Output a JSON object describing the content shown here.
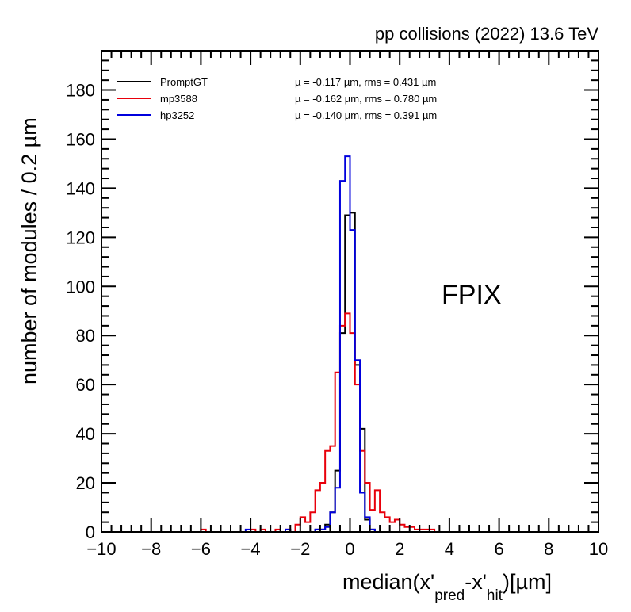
{
  "chart_data": {
    "type": "histogram",
    "header": "pp collisions (2022) 13.6 TeV",
    "annotation": "FPIX",
    "xlabel_parts": {
      "main": "median(x'",
      "sub1": "pred",
      "mid": "-x'",
      "sub2": "hit",
      "end": ")[µm]"
    },
    "ylabel": "number of modules / 0.2  µm",
    "xlim": [
      -10,
      10
    ],
    "ylim": [
      0,
      196
    ],
    "x_ticks": [
      "−10",
      "−8",
      "−6",
      "−4",
      "−2",
      "0",
      "2",
      "4",
      "6",
      "8",
      "10"
    ],
    "y_ticks": [
      "0",
      "20",
      "40",
      "60",
      "80",
      "100",
      "120",
      "140",
      "160",
      "180"
    ],
    "bin_width": 0.2,
    "series": [
      {
        "name": "PromptGT",
        "color": "#000000",
        "stats": "µ = -0.117 µm,  rms = 0.431 µm",
        "bins": [
          [
            -1.4,
            1
          ],
          [
            -1.2,
            1
          ],
          [
            -1.0,
            3
          ],
          [
            -0.8,
            8
          ],
          [
            -0.6,
            25
          ],
          [
            -0.4,
            81
          ],
          [
            -0.2,
            129
          ],
          [
            0.0,
            130
          ],
          [
            0.2,
            68
          ],
          [
            0.4,
            42
          ],
          [
            0.6,
            5
          ],
          [
            0.8,
            1
          ]
        ]
      },
      {
        "name": "mp3588",
        "color": "#e8000b",
        "stats": "µ = -0.162 µm,  rms = 0.780 µm",
        "bins": [
          [
            -6.0,
            1
          ],
          [
            -4.0,
            1
          ],
          [
            -3.6,
            1
          ],
          [
            -3.0,
            1
          ],
          [
            -2.6,
            1
          ],
          [
            -2.2,
            3
          ],
          [
            -2.0,
            6
          ],
          [
            -1.8,
            4
          ],
          [
            -1.6,
            8
          ],
          [
            -1.4,
            17
          ],
          [
            -1.2,
            20
          ],
          [
            -1.0,
            33
          ],
          [
            -0.8,
            35
          ],
          [
            -0.6,
            65
          ],
          [
            -0.4,
            84
          ],
          [
            -0.2,
            89
          ],
          [
            0.0,
            81
          ],
          [
            0.2,
            60
          ],
          [
            0.4,
            33
          ],
          [
            0.6,
            20
          ],
          [
            0.8,
            9
          ],
          [
            1.0,
            17
          ],
          [
            1.2,
            8
          ],
          [
            1.4,
            6
          ],
          [
            1.6,
            4
          ],
          [
            1.8,
            5
          ],
          [
            2.0,
            3
          ],
          [
            2.2,
            2
          ],
          [
            2.4,
            2
          ],
          [
            2.6,
            1
          ],
          [
            2.8,
            1
          ],
          [
            3.0,
            1
          ],
          [
            3.2,
            1
          ]
        ]
      },
      {
        "name": "hp3252",
        "color": "#0000dd",
        "stats": "µ = -0.140 µm,  rms = 0.391 µm",
        "bins": [
          [
            -4.2,
            1
          ],
          [
            -2.6,
            1
          ],
          [
            -1.4,
            1
          ],
          [
            -1.2,
            1
          ],
          [
            -1.0,
            2
          ],
          [
            -0.8,
            8
          ],
          [
            -0.6,
            18
          ],
          [
            -0.4,
            143
          ],
          [
            -0.2,
            153
          ],
          [
            0.0,
            123
          ],
          [
            0.2,
            70
          ],
          [
            0.4,
            16
          ],
          [
            0.6,
            6
          ],
          [
            0.8,
            1
          ]
        ]
      }
    ]
  }
}
